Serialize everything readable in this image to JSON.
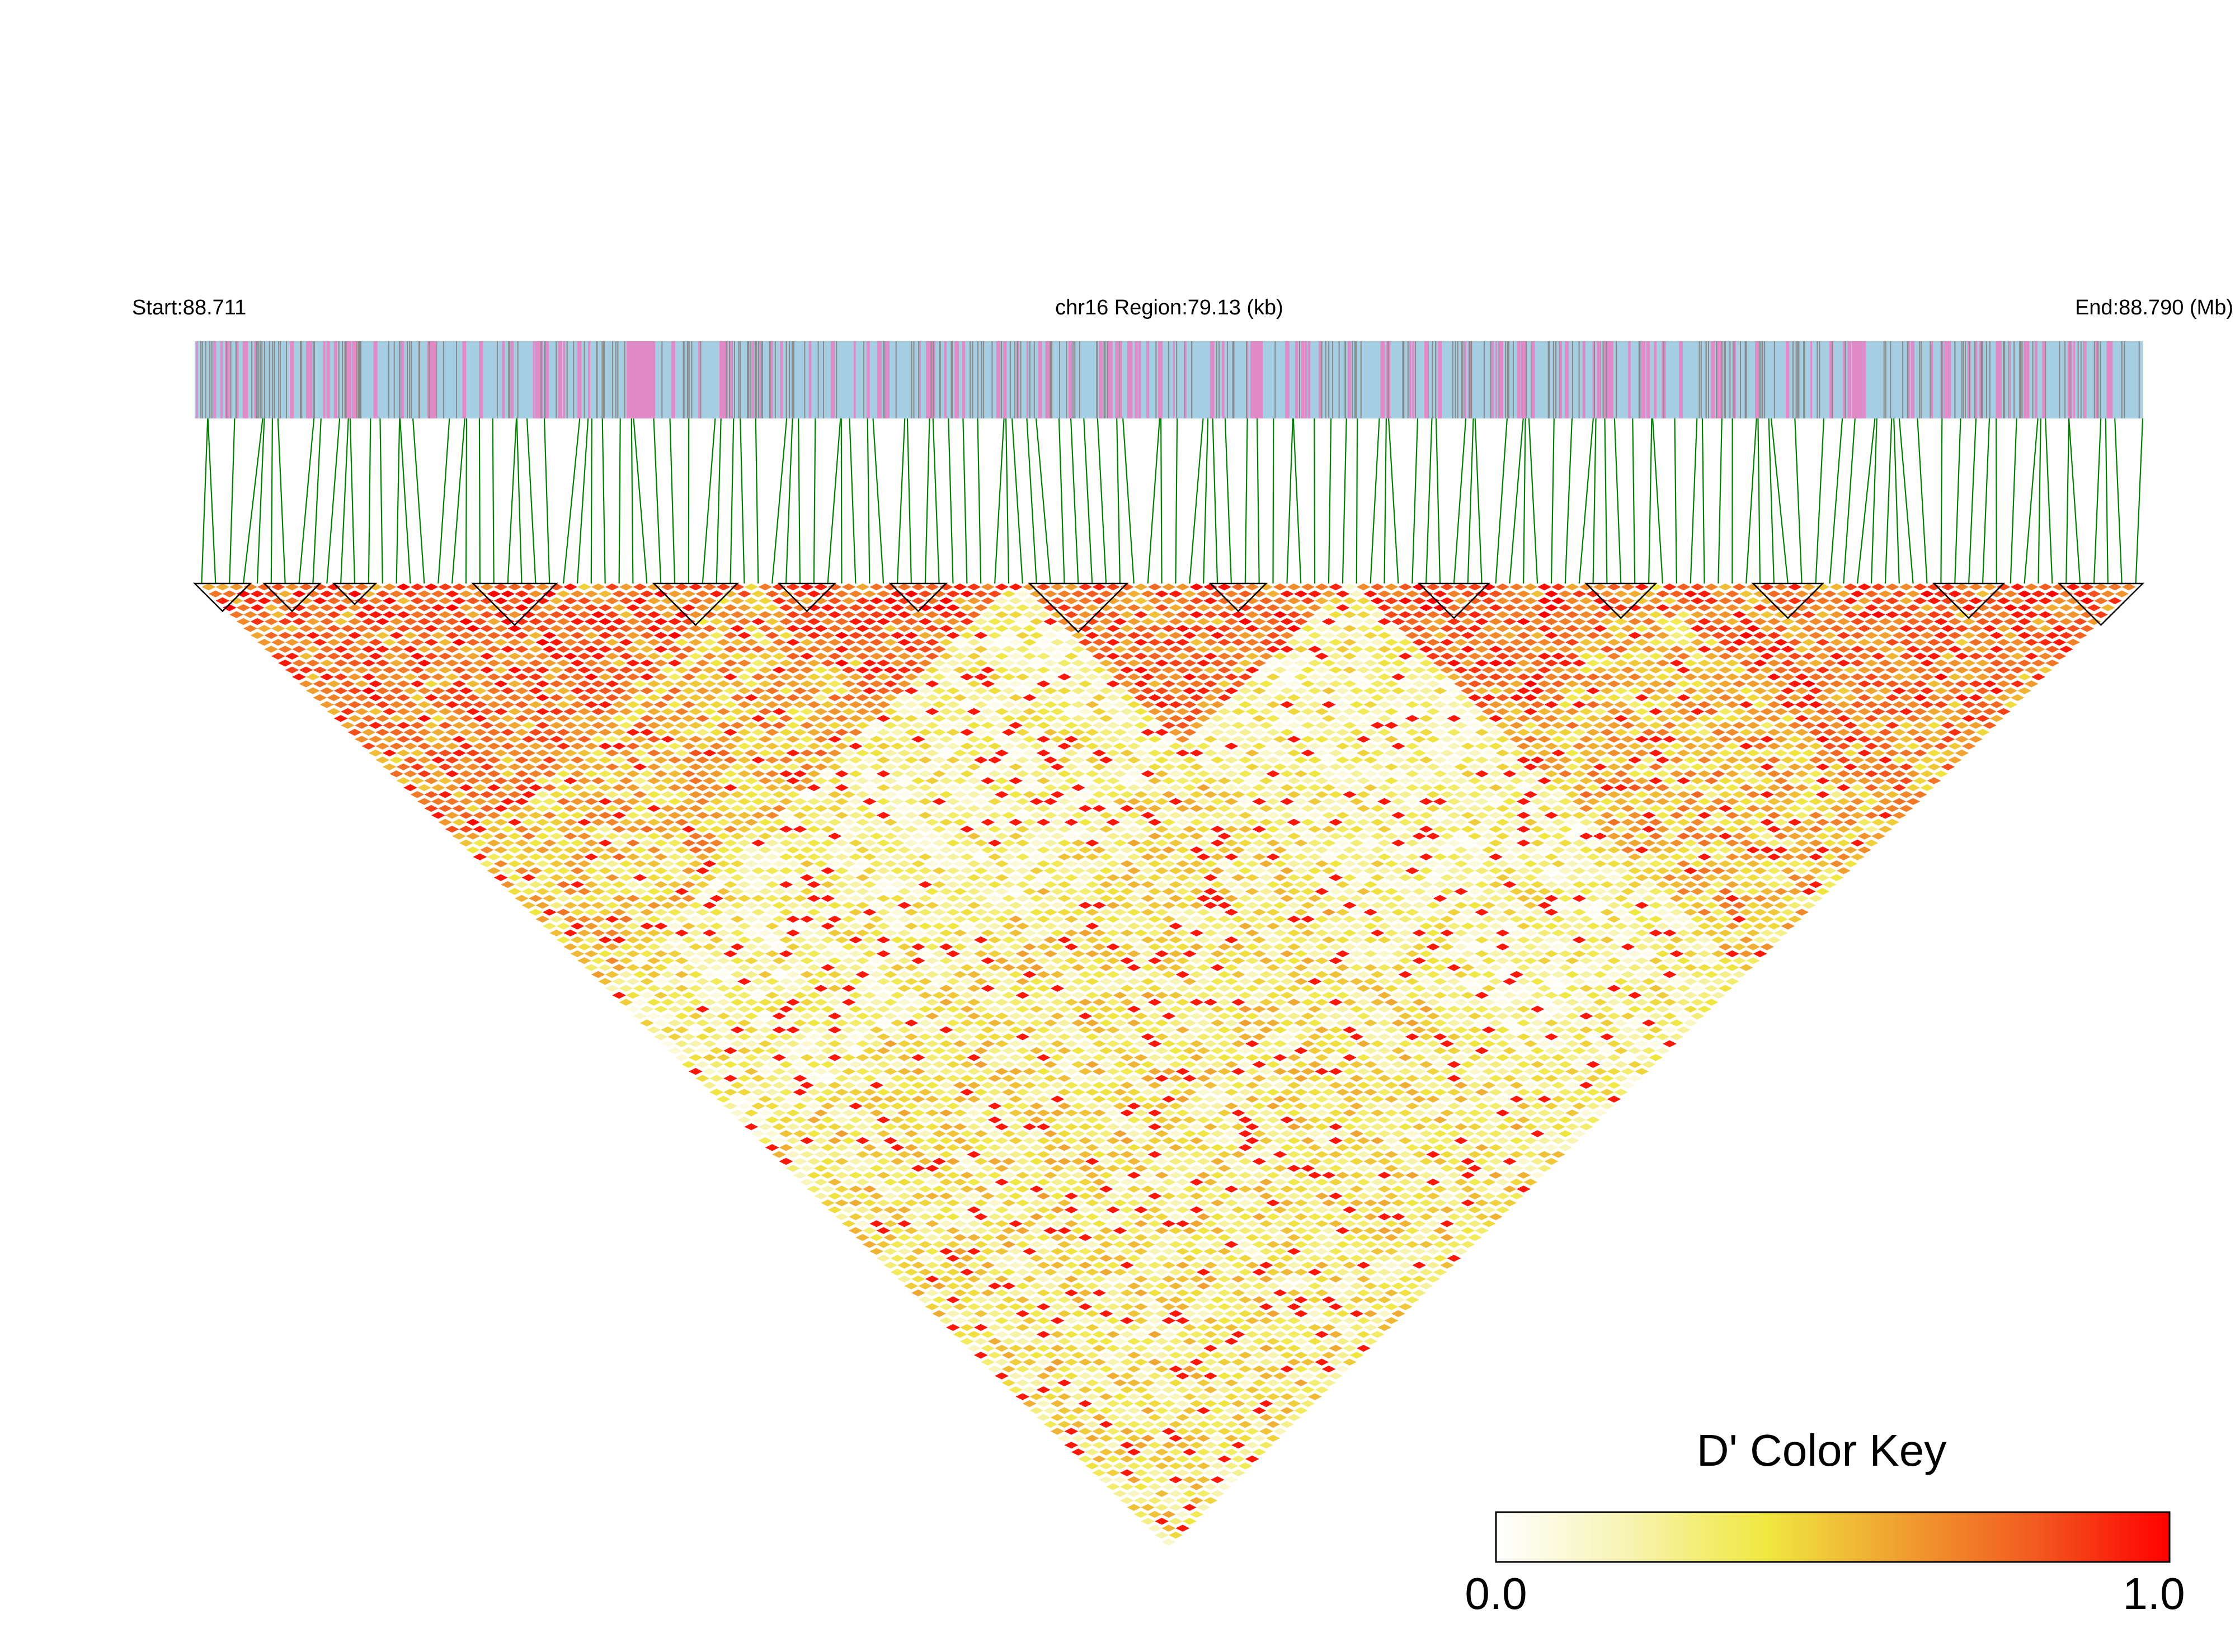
{
  "header": {
    "start_label": "Start:88.711",
    "region_label": "chr16 Region:79.13 (kb)",
    "end_label": "End:88.790 (Mb)"
  },
  "colors": {
    "track_background": "#a6cee3",
    "track_pink": "#e08ac8",
    "track_gray": "#8a8a8a",
    "connector_green": "#008000",
    "ld_low": "#ffffff",
    "ld_mid": "#f0e840",
    "ld_high": "#ff0000",
    "block_outline": "#000000"
  },
  "chart_data": {
    "type": "heatmap",
    "subtype": "linkage-disequilibrium triangle",
    "chromosome": "chr16",
    "region_start_mb": 88.711,
    "region_end_mb": 88.79,
    "region_length_kb": 79.13,
    "metric": "D'",
    "value_range": [
      0.0,
      1.0
    ],
    "pattern_note": "Strong LD (D' near 1.0) in blocks along the diagonal, notably from the start to ~88.728 Mb and from ~88.760 Mb to the end; weak LD (D' near 0) between the central and right regions.",
    "color_key": {
      "title": "D' Color Key",
      "min_label": "0.0",
      "max_label": "1.0",
      "stops": [
        "#ffffff",
        "#f7f3b0",
        "#f0e840",
        "#f0a030",
        "#f25a20",
        "#ff0000"
      ]
    },
    "legend_position": "bottom-right"
  }
}
